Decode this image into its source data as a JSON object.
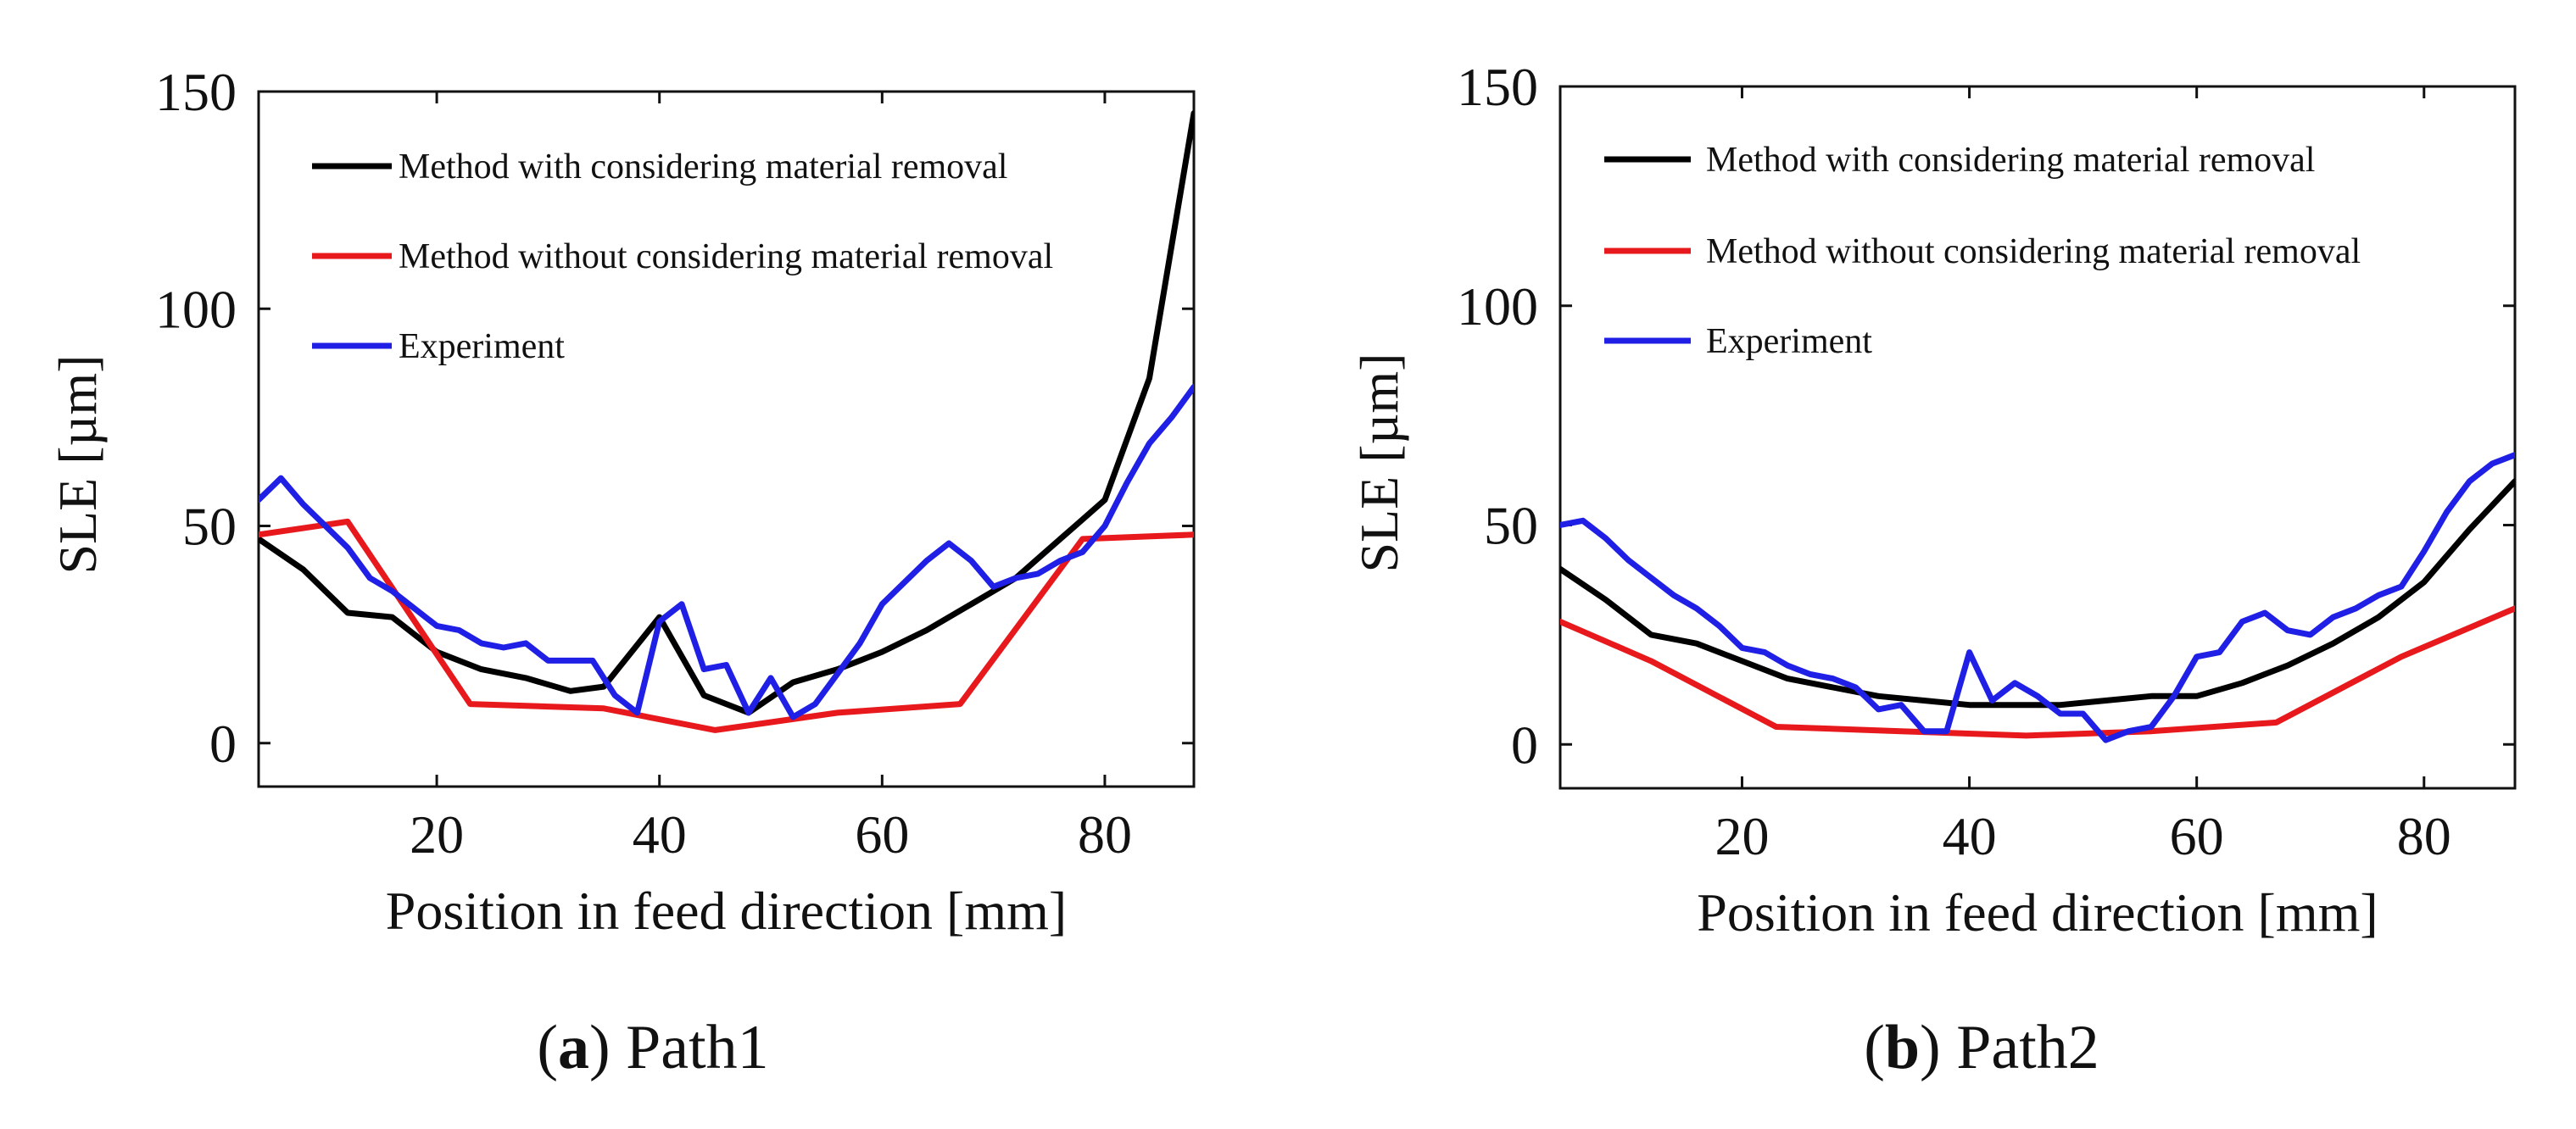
{
  "chart_data": [
    {
      "type": "line",
      "panel_label": "(a)",
      "caption_letter": "a",
      "caption_text": "Path1",
      "xlabel": "Position in feed direction [mm]",
      "ylabel": "SLE [µm]",
      "xlim": [
        4,
        88
      ],
      "ylim": [
        -10,
        150
      ],
      "xticks": [
        20,
        40,
        60,
        80
      ],
      "yticks": [
        0,
        50,
        100,
        150
      ],
      "legend_position": "top-left",
      "series": [
        {
          "name": "Method with considering material removal",
          "color": "#000000",
          "x": [
            4,
            8,
            12,
            16,
            20,
            24,
            28,
            32,
            35,
            40,
            44,
            48,
            52,
            56,
            60,
            64,
            68,
            72,
            76,
            80,
            84,
            88
          ],
          "y": [
            47,
            40,
            30,
            29,
            21,
            17,
            15,
            12,
            13,
            29,
            11,
            7,
            14,
            17,
            21,
            26,
            32,
            38,
            47,
            56,
            84,
            145
          ]
        },
        {
          "name": "Method without considering material removal",
          "color": "#e8191c",
          "x": [
            4,
            12,
            23,
            35,
            45,
            56,
            67,
            78,
            88
          ],
          "y": [
            48,
            51,
            9,
            8,
            3,
            7,
            9,
            47,
            48
          ]
        },
        {
          "name": "Experiment",
          "color": "#1f1fe6",
          "x": [
            4,
            6,
            8,
            10,
            12,
            14,
            16,
            18,
            20,
            22,
            24,
            26,
            28,
            30,
            32,
            34,
            36,
            38,
            40,
            42,
            44,
            46,
            48,
            50,
            52,
            54,
            56,
            58,
            60,
            62,
            64,
            66,
            68,
            70,
            72,
            74,
            76,
            78,
            80,
            82,
            84,
            86,
            88
          ],
          "y": [
            56,
            61,
            55,
            50,
            45,
            38,
            35,
            31,
            27,
            26,
            23,
            22,
            23,
            19,
            19,
            19,
            11,
            7,
            28,
            32,
            17,
            18,
            7,
            15,
            6,
            9,
            16,
            23,
            32,
            37,
            42,
            46,
            42,
            36,
            38,
            39,
            42,
            44,
            50,
            60,
            69,
            75,
            82
          ]
        }
      ]
    },
    {
      "type": "line",
      "panel_label": "(b)",
      "caption_letter": "b",
      "caption_text": "Path2",
      "xlabel": "Position in feed direction [mm]",
      "ylabel": "SLE [µm]",
      "xlim": [
        4,
        88
      ],
      "ylim": [
        -10,
        150
      ],
      "xticks": [
        20,
        40,
        60,
        80
      ],
      "yticks": [
        0,
        50,
        100,
        150
      ],
      "legend_position": "top-left",
      "series": [
        {
          "name": "Method with considering material removal",
          "color": "#000000",
          "x": [
            4,
            8,
            12,
            16,
            20,
            24,
            28,
            32,
            36,
            40,
            44,
            48,
            52,
            56,
            60,
            64,
            68,
            72,
            76,
            80,
            84,
            88
          ],
          "y": [
            40,
            33,
            25,
            23,
            19,
            15,
            13,
            11,
            10,
            9,
            9,
            9,
            10,
            11,
            11,
            14,
            18,
            23,
            29,
            37,
            49,
            60
          ]
        },
        {
          "name": "Method without considering material removal",
          "color": "#e8191c",
          "x": [
            4,
            12,
            23,
            34,
            45,
            56,
            67,
            78,
            88
          ],
          "y": [
            28,
            19,
            4,
            3,
            2,
            3,
            5,
            20,
            31
          ]
        },
        {
          "name": "Experiment",
          "color": "#1f1fe6",
          "x": [
            4,
            6,
            8,
            10,
            12,
            14,
            16,
            18,
            20,
            22,
            24,
            26,
            28,
            30,
            32,
            34,
            36,
            38,
            40,
            42,
            44,
            46,
            48,
            50,
            52,
            54,
            56,
            58,
            60,
            62,
            64,
            66,
            68,
            70,
            72,
            74,
            76,
            78,
            80,
            82,
            84,
            86,
            88
          ],
          "y": [
            50,
            51,
            47,
            42,
            38,
            34,
            31,
            27,
            22,
            21,
            18,
            16,
            15,
            13,
            8,
            9,
            3,
            3,
            21,
            10,
            14,
            11,
            7,
            7,
            1,
            3,
            4,
            11,
            20,
            21,
            28,
            30,
            26,
            25,
            29,
            31,
            34,
            36,
            44,
            53,
            60,
            64,
            66
          ]
        }
      ]
    }
  ]
}
